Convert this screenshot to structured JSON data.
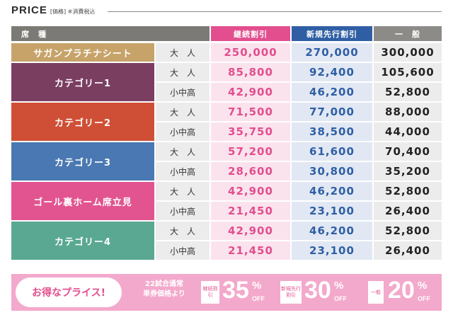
{
  "header": {
    "title": "PRICE",
    "subtitle": "[価格] ※消費税込"
  },
  "columns": {
    "seat": "席　種",
    "keizoku": "継続割引",
    "shinki": "新規先行割引",
    "ippan": "一　般"
  },
  "categories": [
    {
      "name": "サガンプラチナシート",
      "color": "#c7a36a",
      "rows": [
        {
          "type": "大　人",
          "keizoku": "250,000",
          "shinki": "270,000",
          "ippan": "300,000"
        }
      ]
    },
    {
      "name": "カテゴリー1",
      "color": "#7a3e60",
      "rows": [
        {
          "type": "大　人",
          "keizoku": "85,800",
          "shinki": "92,400",
          "ippan": "105,600"
        },
        {
          "type": "小中高",
          "keizoku": "42,900",
          "shinki": "46,200",
          "ippan": "52,800"
        }
      ]
    },
    {
      "name": "カテゴリー2",
      "color": "#cf4f36",
      "rows": [
        {
          "type": "大　人",
          "keizoku": "71,500",
          "shinki": "77,000",
          "ippan": "88,000"
        },
        {
          "type": "小中高",
          "keizoku": "35,750",
          "shinki": "38,500",
          "ippan": "44,000"
        }
      ]
    },
    {
      "name": "カテゴリー3",
      "color": "#4a78b2",
      "rows": [
        {
          "type": "大　人",
          "keizoku": "57,200",
          "shinki": "61,600",
          "ippan": "70,400"
        },
        {
          "type": "小中高",
          "keizoku": "28,600",
          "shinki": "30,800",
          "ippan": "35,200"
        }
      ]
    },
    {
      "name": "ゴール裏ホーム席立見",
      "color": "#e2548f",
      "rows": [
        {
          "type": "大　人",
          "keizoku": "42,900",
          "shinki": "46,200",
          "ippan": "52,800"
        },
        {
          "type": "小中高",
          "keizoku": "21,450",
          "shinki": "23,100",
          "ippan": "26,400"
        }
      ]
    },
    {
      "name": "カテゴリー4",
      "color": "#5aa891",
      "rows": [
        {
          "type": "大　人",
          "keizoku": "42,900",
          "shinki": "46,200",
          "ippan": "52,800"
        },
        {
          "type": "小中高",
          "keizoku": "21,450",
          "shinki": "23,100",
          "ippan": "26,400"
        }
      ]
    }
  ],
  "banner": {
    "title": "お得なプライス!",
    "note_line1": "22試合通常",
    "note_line2": "単券価格より",
    "discounts": [
      {
        "label": "継続割引",
        "number": "35",
        "pct": "%",
        "off": "OFF"
      },
      {
        "label": "新規先行割引",
        "number": "30",
        "pct": "%",
        "off": "OFF"
      },
      {
        "label": "一般",
        "number": "20",
        "pct": "%",
        "off": "OFF"
      }
    ]
  }
}
